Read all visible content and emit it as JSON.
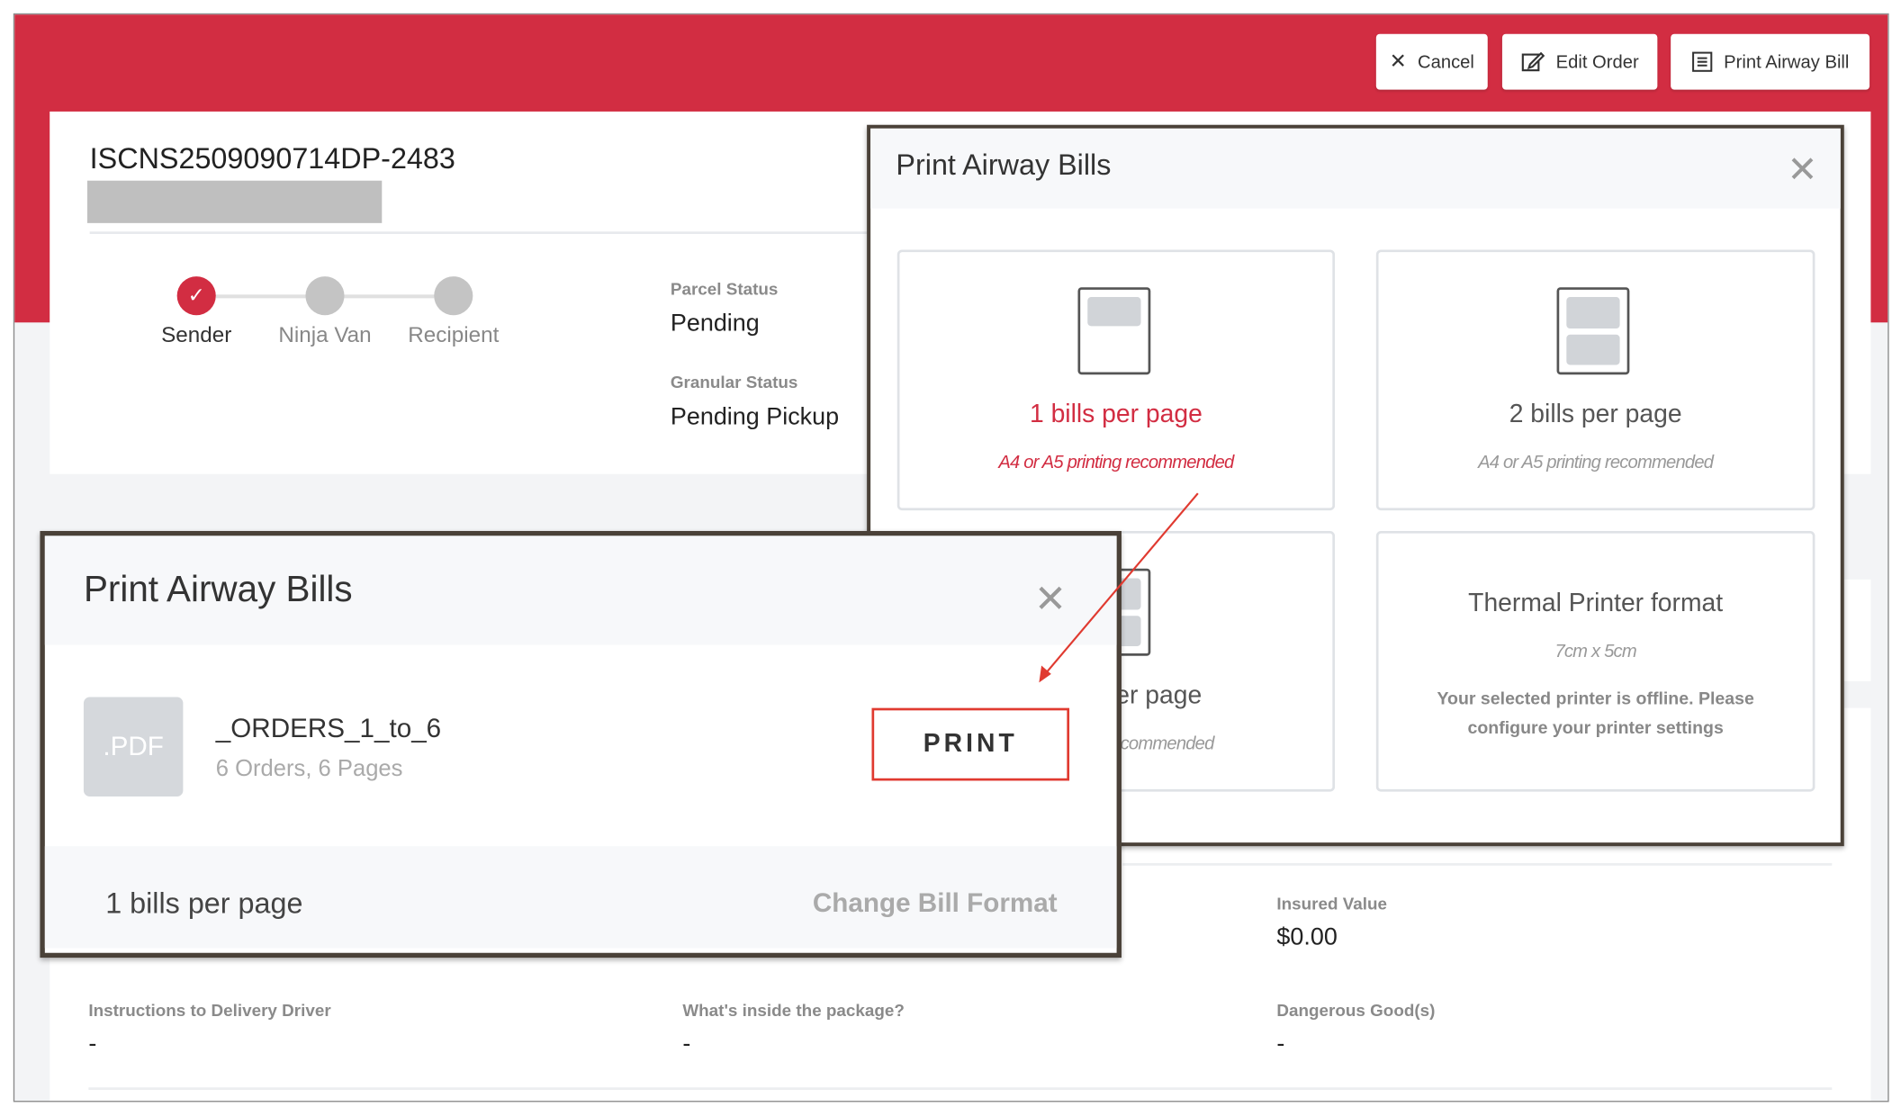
{
  "header": {
    "cancel_label": "Cancel",
    "edit_order_label": "Edit Order",
    "print_awb_label": "Print Airway Bill",
    "brand_color": "#d22d42"
  },
  "order": {
    "tracking_id": "ISCNS2509090714DP-2483",
    "steps": [
      {
        "label": "Sender",
        "done": true
      },
      {
        "label": "Ninja Van",
        "done": false
      },
      {
        "label": "Recipient",
        "done": false
      }
    ],
    "parcel_status_label": "Parcel Status",
    "parcel_status": "Pending",
    "granular_status_label": "Granular Status",
    "granular_status": "Pending Pickup"
  },
  "details": {
    "insured_value_label": "Insured Value",
    "insured_value": "$0.00",
    "instructions_label": "Instructions to Delivery Driver",
    "instructions": "-",
    "contents_label": "What's inside the package?",
    "contents": "-",
    "dangerous_label": "Dangerous Good(s)",
    "dangerous": "-"
  },
  "format_modal": {
    "title": "Print Airway Bills",
    "options": [
      {
        "label": "1 bills per page",
        "sub": "A4 or A5 printing recommended",
        "selected": true
      },
      {
        "label": "2 bills per page",
        "sub": "A4 or A5 printing recommended",
        "selected": false
      },
      {
        "label": "er page",
        "sub": "commended",
        "selected": false
      },
      {
        "label": "Thermal Printer format",
        "sub": "7cm x 5cm",
        "note": "Your selected printer is offline. Please configure your printer settings",
        "selected": false
      }
    ]
  },
  "print_modal": {
    "title": "Print Airway Bills",
    "file_badge": ".PDF",
    "file_name": "_ORDERS_1_to_6",
    "file_meta": "6 Orders, 6 Pages",
    "print_label": "PRINT",
    "current_format": "1 bills per page",
    "change_format_label": "Change Bill Format"
  }
}
